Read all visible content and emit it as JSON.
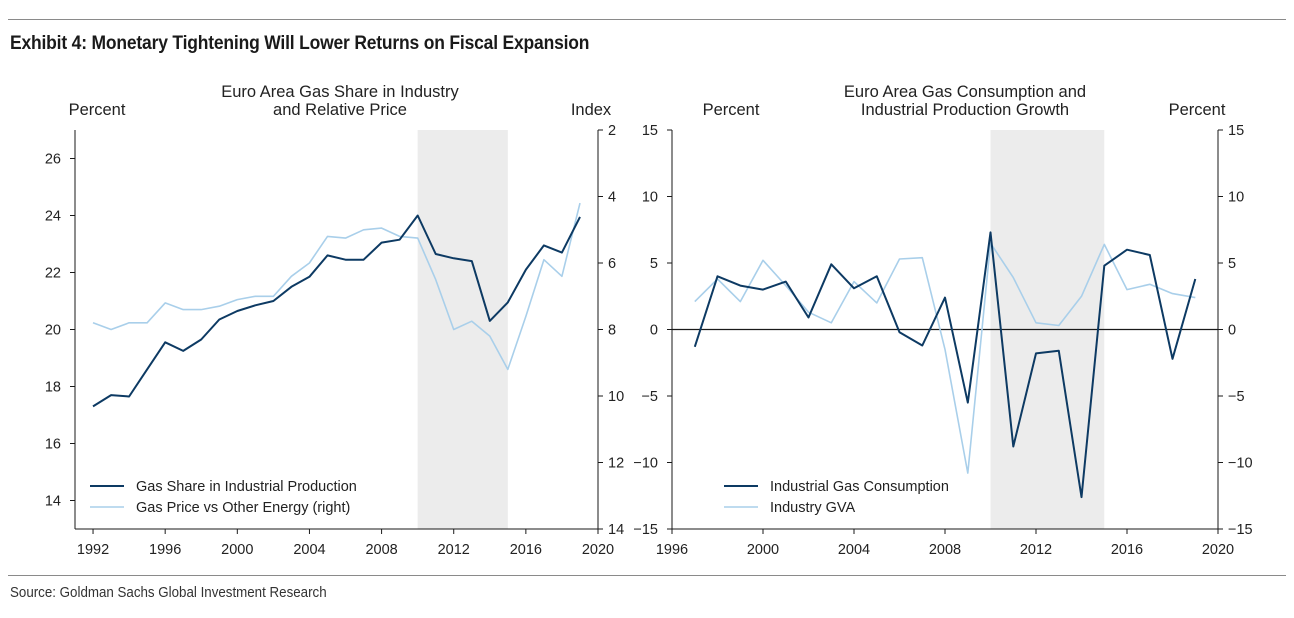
{
  "header": {
    "title": "Exhibit 4: Monetary Tightening Will Lower Returns on Fiscal Expansion"
  },
  "footer": {
    "source": "Source: Goldman Sachs Global Investment Research"
  },
  "colors": {
    "dark_series": "#0d3a63",
    "light_series": "#a9cfea",
    "shade": "#ececec",
    "axis": "#1a1a1a"
  },
  "chart_data": [
    {
      "type": "line",
      "title": "Euro Area Gas Share in Industry and Relative Price",
      "title_lines": [
        "Euro Area Gas Share in Industry",
        "and Relative Price"
      ],
      "left_axis_label": "Percent",
      "right_axis_label": "Index",
      "xlim": [
        1991,
        2020
      ],
      "xticks": [
        1992,
        1996,
        2000,
        2004,
        2008,
        2012,
        2016,
        2020
      ],
      "left_ylim": [
        13,
        27
      ],
      "left_yticks": [
        14,
        16,
        18,
        20,
        22,
        24,
        26
      ],
      "right_ylim": [
        14,
        2
      ],
      "right_yticks": [
        2,
        4,
        6,
        8,
        10,
        12,
        14
      ],
      "shaded_range": [
        2010,
        2015
      ],
      "zero_line": false,
      "series": [
        {
          "name": "Gas Share in Industrial Production",
          "axis": "left",
          "x": [
            1992,
            1993,
            1994,
            1995,
            1996,
            1997,
            1998,
            1999,
            2000,
            2001,
            2002,
            2003,
            2004,
            2005,
            2006,
            2007,
            2008,
            2009,
            2010,
            2011,
            2012,
            2013,
            2014,
            2015,
            2016,
            2017,
            2018,
            2019
          ],
          "values": [
            17.3,
            17.7,
            17.65,
            18.6,
            19.55,
            19.25,
            19.65,
            20.35,
            20.65,
            20.85,
            21.0,
            21.5,
            21.85,
            22.6,
            22.45,
            22.45,
            23.05,
            23.15,
            24.0,
            22.65,
            22.5,
            22.4,
            20.3,
            20.95,
            22.1,
            22.95,
            22.7,
            23.95
          ]
        },
        {
          "name": "Gas Price vs Other Energy (right)",
          "axis": "right",
          "x": [
            1992,
            1993,
            1994,
            1995,
            1996,
            1997,
            1998,
            1999,
            2000,
            2001,
            2002,
            2003,
            2004,
            2005,
            2006,
            2007,
            2008,
            2009,
            2010,
            2011,
            2012,
            2013,
            2014,
            2015,
            2016,
            2017,
            2018,
            2019
          ],
          "values": [
            7.8,
            8.0,
            7.8,
            7.8,
            7.2,
            7.4,
            7.4,
            7.3,
            7.1,
            7.0,
            7.0,
            6.4,
            6.0,
            5.2,
            5.25,
            5.0,
            4.95,
            5.2,
            5.25,
            6.5,
            8.0,
            7.75,
            8.2,
            9.2,
            7.6,
            5.9,
            6.4,
            4.2
          ]
        }
      ]
    },
    {
      "type": "line",
      "title": "Euro Area Gas Consumption and Industrial Production Growth",
      "title_lines": [
        "Euro Area Gas Consumption and",
        "Industrial Production Growth"
      ],
      "left_axis_label": "Percent",
      "right_axis_label": "Percent",
      "xlim": [
        1996,
        2020
      ],
      "xticks": [
        1996,
        2000,
        2004,
        2008,
        2012,
        2016,
        2020
      ],
      "left_ylim": [
        -15,
        15
      ],
      "left_yticks": [
        -15,
        -10,
        -5,
        0,
        5,
        10,
        15
      ],
      "right_ylim": [
        -15,
        15
      ],
      "right_yticks": [
        -15,
        -10,
        -5,
        0,
        5,
        10,
        15
      ],
      "shaded_range": [
        2010,
        2015
      ],
      "zero_line": true,
      "series": [
        {
          "name": "Industrial Gas Consumption",
          "axis": "left",
          "x": [
            1997,
            1998,
            1999,
            2000,
            2001,
            2002,
            2003,
            2004,
            2005,
            2006,
            2007,
            2008,
            2009,
            2010,
            2011,
            2012,
            2013,
            2014,
            2015,
            2016,
            2017,
            2018,
            2019
          ],
          "values": [
            -1.3,
            4.0,
            3.3,
            3.0,
            3.6,
            0.9,
            4.9,
            3.1,
            4.0,
            -0.2,
            -1.2,
            2.4,
            -5.5,
            7.3,
            -8.8,
            -1.8,
            -1.6,
            -12.6,
            4.8,
            6.0,
            5.6,
            -2.2,
            3.8
          ]
        },
        {
          "name": "Industry GVA",
          "axis": "left",
          "x": [
            1997,
            1998,
            1999,
            2000,
            2001,
            2002,
            2003,
            2004,
            2005,
            2006,
            2007,
            2008,
            2009,
            2010,
            2011,
            2012,
            2013,
            2014,
            2015,
            2016,
            2017,
            2018,
            2019
          ],
          "values": [
            2.1,
            3.8,
            2.1,
            5.2,
            3.3,
            1.3,
            0.5,
            3.6,
            2.0,
            5.3,
            5.4,
            -1.5,
            -10.8,
            6.5,
            3.9,
            0.5,
            0.3,
            2.5,
            6.4,
            3.0,
            3.4,
            2.7,
            2.4
          ]
        }
      ]
    }
  ]
}
